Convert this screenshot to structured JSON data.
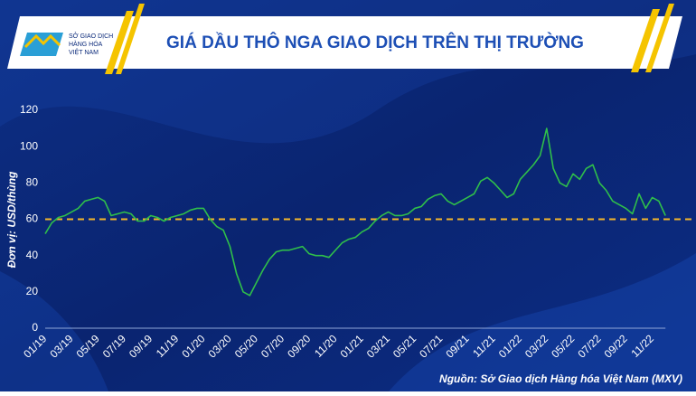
{
  "chart_data": {
    "type": "line",
    "title": "GIÁ DẦU THÔ NGA GIAO DỊCH TRÊN THỊ TRƯỜNG",
    "logo_text": [
      "SỞ GIAO DỊCH",
      "HÀNG HÓA",
      "VIỆT NAM"
    ],
    "y_label": "Đơn vị: USD/thùng",
    "source": "Nguồn: Sở Giao dịch Hàng hóa Việt Nam (MXV)",
    "categories": [
      "01/19",
      null,
      null,
      null,
      "03/19",
      null,
      null,
      null,
      "05/19",
      null,
      null,
      null,
      "07/19",
      null,
      null,
      null,
      "09/19",
      null,
      null,
      null,
      "11/19",
      null,
      null,
      null,
      "01/20",
      null,
      null,
      null,
      "03/20",
      null,
      null,
      null,
      "05/20",
      null,
      null,
      null,
      "07/20",
      null,
      null,
      null,
      "09/20",
      null,
      null,
      null,
      "11/20",
      null,
      null,
      null,
      "01/21",
      null,
      null,
      null,
      "03/21",
      null,
      null,
      null,
      "05/21",
      null,
      null,
      null,
      "07/21",
      null,
      null,
      null,
      "09/21",
      null,
      null,
      null,
      "11/21",
      null,
      null,
      null,
      "01/22",
      null,
      null,
      null,
      "03/22",
      null,
      null,
      null,
      "05/22",
      null,
      null,
      null,
      "07/22",
      null,
      null,
      null,
      "09/22",
      null,
      null,
      null,
      "11/22",
      null,
      null
    ],
    "series": [
      {
        "color": "#2fbf4a",
        "values": [
          52,
          58,
          61,
          62,
          64,
          66,
          70,
          71,
          72,
          70,
          62,
          63,
          64,
          63,
          59,
          59,
          62,
          61,
          59,
          61,
          62,
          63,
          65,
          66,
          66,
          60,
          56,
          54,
          45,
          30,
          20,
          18,
          25,
          32,
          38,
          42,
          43,
          43,
          44,
          45,
          41,
          40,
          40,
          39,
          43,
          47,
          49,
          50,
          53,
          55,
          59,
          62,
          64,
          62,
          62,
          63,
          66,
          67,
          71,
          73,
          74,
          70,
          68,
          70,
          72,
          74,
          81,
          83,
          80,
          76,
          72,
          74,
          82,
          86,
          90,
          95,
          110,
          88,
          80,
          78,
          85,
          82,
          88,
          90,
          80,
          76,
          70,
          68,
          66,
          63,
          74,
          66,
          72,
          70,
          62
        ]
      }
    ],
    "ylim": [
      0,
      120
    ],
    "yticks": [
      0,
      20,
      40,
      60,
      80,
      100,
      120
    ],
    "reference_line": {
      "value": 60,
      "color": "#f5b72a"
    }
  }
}
